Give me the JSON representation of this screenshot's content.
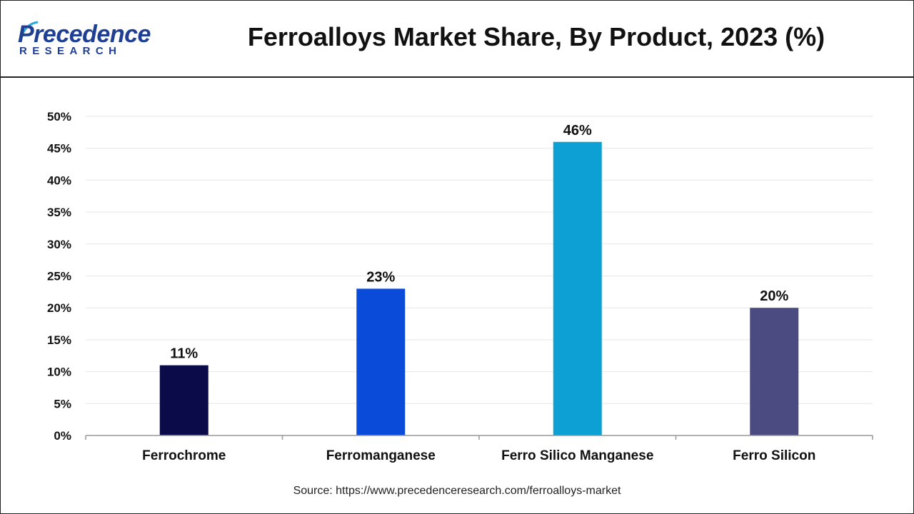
{
  "header": {
    "logo_top": "Precedence",
    "logo_bottom": "RESEARCH",
    "title": "Ferroalloys Market Share, By Product, 2023 (%)"
  },
  "source": "Source: https://www.precedenceresearch.com/ferroalloys-market",
  "chart_data": {
    "type": "bar",
    "categories": [
      "Ferrochrome",
      "Ferromanganese",
      "Ferro Silico Manganese",
      "Ferro Silicon"
    ],
    "values": [
      11,
      23,
      46,
      20
    ],
    "data_labels": [
      "11%",
      "23%",
      "46%",
      "20%"
    ],
    "bar_colors": [
      "#0b0b4a",
      "#0a4bd9",
      "#0da0d4",
      "#4b4b82"
    ],
    "ylim": [
      0,
      50
    ],
    "yticks": [
      0,
      5,
      10,
      15,
      20,
      25,
      30,
      35,
      40,
      45,
      50
    ],
    "ytick_labels": [
      "0%",
      "5%",
      "10%",
      "15%",
      "20%",
      "25%",
      "30%",
      "35%",
      "40%",
      "45%",
      "50%"
    ],
    "grid": true,
    "legend": "none"
  }
}
